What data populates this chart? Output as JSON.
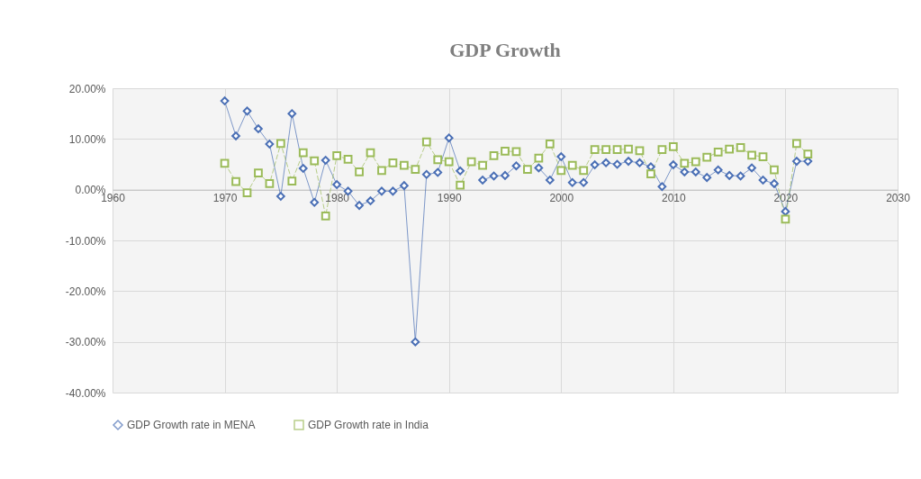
{
  "chart_data": {
    "type": "line",
    "title": "GDP Growth",
    "x": [
      1970,
      1971,
      1972,
      1973,
      1974,
      1975,
      1976,
      1977,
      1978,
      1979,
      1980,
      1981,
      1982,
      1983,
      1984,
      1985,
      1986,
      1987,
      1988,
      1989,
      1990,
      1991,
      1992,
      1993,
      1994,
      1995,
      1996,
      1997,
      1998,
      1999,
      2000,
      2001,
      2002,
      2003,
      2004,
      2005,
      2006,
      2007,
      2008,
      2009,
      2010,
      2011,
      2012,
      2013,
      2014,
      2015,
      2016,
      2017,
      2018,
      2019,
      2020,
      2021,
      2022
    ],
    "series": [
      {
        "name": "GDP Growth rate in MENA",
        "color": "#4a6fb5",
        "marker": "diamond",
        "line_style": "solid",
        "values": [
          17.5,
          10.6,
          15.5,
          12,
          9,
          -1.3,
          15,
          4.2,
          -2.5,
          5.8,
          1,
          -0.3,
          -3.1,
          -2.2,
          -0.3,
          -0.3,
          0.8,
          -30,
          3,
          3.4,
          10.2,
          3.7,
          null,
          1.9,
          2.7,
          2.8,
          4.7,
          null,
          4.3,
          1.9,
          6.5,
          1.4,
          1.4,
          4.9,
          5.3,
          5,
          5.6,
          5.3,
          4.5,
          0.6,
          4.9,
          3.5,
          3.5,
          2.4,
          3.9,
          2.8,
          2.7,
          4.3,
          1.9,
          1.2,
          -4.3,
          5.6,
          5.6
        ]
      },
      {
        "name": "GDP Growth rate in India",
        "color": "#9bbb59",
        "marker": "square",
        "line_style": "dashed",
        "values": [
          5.2,
          1.6,
          -0.6,
          3.3,
          1.2,
          9.1,
          1.7,
          7.3,
          5.7,
          -5.2,
          6.7,
          6,
          3.5,
          7.3,
          3.8,
          5.3,
          4.8,
          4,
          9.4,
          5.9,
          5.5,
          0.9,
          5.5,
          4.8,
          6.7,
          7.6,
          7.5,
          4,
          6.2,
          9,
          3.8,
          4.8,
          3.8,
          7.9,
          7.9,
          7.9,
          8,
          7.7,
          3.1,
          7.9,
          8.5,
          5.2,
          5.5,
          6.4,
          7.4,
          8,
          8.3,
          6.8,
          6.5,
          3.9,
          -5.8,
          9.1,
          7
        ]
      }
    ],
    "xlim": [
      1960,
      2030
    ],
    "xticks": [
      1960,
      1970,
      1980,
      1990,
      2000,
      2010,
      2020,
      2030
    ],
    "ylim": [
      -40,
      20
    ],
    "yticks": [
      {
        "value": -40,
        "label": "-40.00%"
      },
      {
        "value": -30,
        "label": "-30.00%"
      },
      {
        "value": -20,
        "label": "-20.00%"
      },
      {
        "value": -10,
        "label": "-10.00%"
      },
      {
        "value": 0,
        "label": "0.00%"
      },
      {
        "value": 10,
        "label": "10.00%"
      },
      {
        "value": 20,
        "label": "20.00%"
      }
    ],
    "grid": true,
    "legend": "bottom"
  }
}
